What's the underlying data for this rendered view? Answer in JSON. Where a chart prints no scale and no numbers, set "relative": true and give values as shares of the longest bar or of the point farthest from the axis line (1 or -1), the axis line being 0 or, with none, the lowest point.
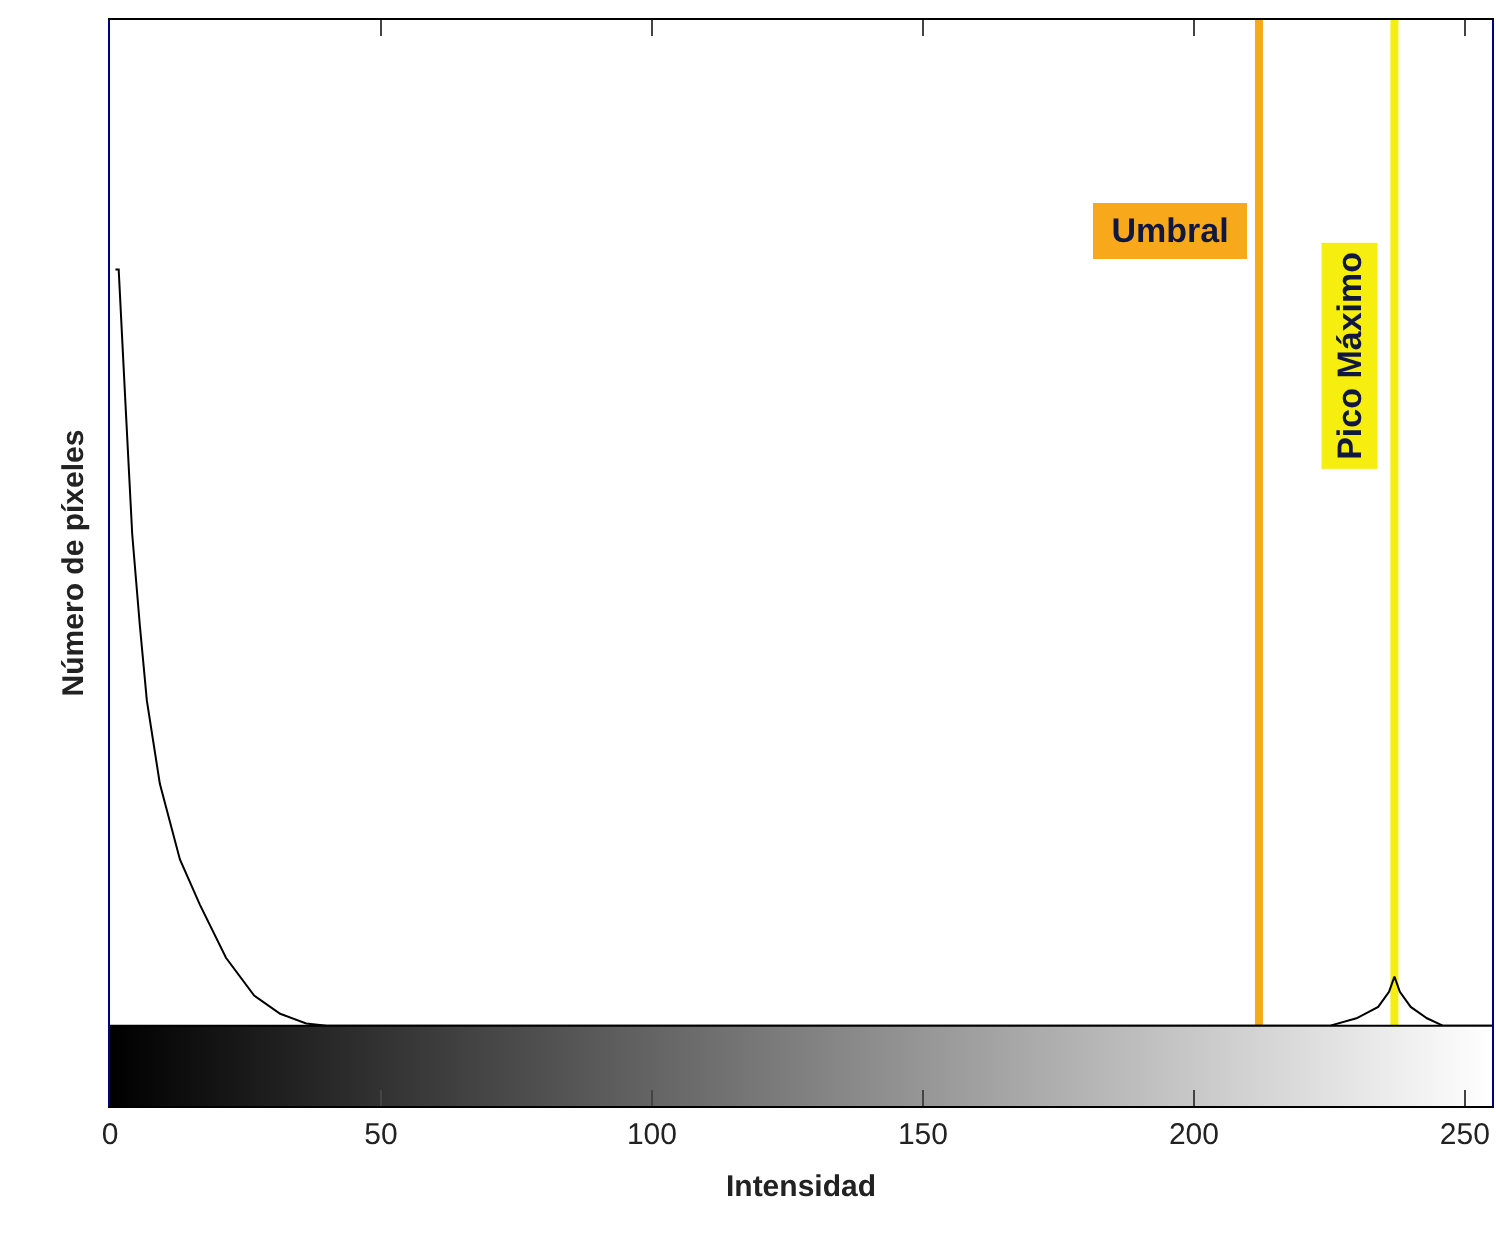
{
  "chart_data": {
    "type": "line",
    "xlabel": "Intensidad",
    "ylabel": "Número de píxeles",
    "relative": true,
    "tick_labels": "x",
    "xlim": [
      0,
      255
    ],
    "xticks": [
      0,
      50,
      100,
      150,
      200,
      250
    ],
    "marker": "none",
    "line_style": "solid",
    "series": [
      {
        "color": "#000000",
        "x": [
          1,
          1.6,
          2.8,
          4.1,
          5.5,
          6.8,
          9.2,
          12.9,
          16.6,
          21.4,
          26.6,
          31.4,
          36.2,
          40,
          60,
          100,
          150,
          200,
          225,
          230,
          234,
          236,
          237,
          238,
          240,
          243,
          246,
          255
        ],
        "values": [
          1,
          1,
          0.83,
          0.65,
          0.53,
          0.43,
          0.32,
          0.22,
          0.16,
          0.09,
          0.04,
          0.016,
          0.003,
          0,
          0,
          0,
          0,
          0,
          0,
          0.01,
          0.025,
          0.045,
          0.065,
          0.045,
          0.025,
          0.01,
          0,
          0
        ]
      }
    ],
    "ref_lines": [
      {
        "axis": "x",
        "value": 212,
        "label": " Umbral ",
        "color": "#f7a81b"
      },
      {
        "axis": "x",
        "value": 237,
        "label": "Pico Máximo",
        "color": "#f5ee0f"
      }
    ]
  }
}
